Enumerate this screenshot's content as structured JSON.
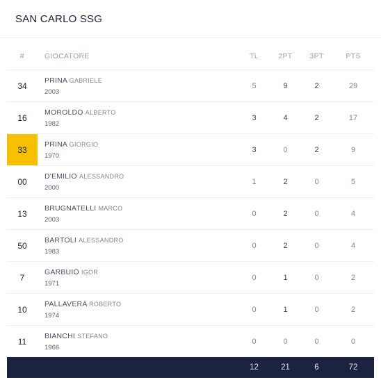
{
  "team": {
    "name": "SAN CARLO SSG"
  },
  "columns": {
    "num": "#",
    "player": "GIOCATORE",
    "tl": "TL",
    "p2": "2PT",
    "p3": "3PT",
    "pts": "PTS"
  },
  "players": [
    {
      "num": "34",
      "last": "PRINA",
      "first": "GABRIELE",
      "year": "2003",
      "tl": "5",
      "p2": "9",
      "p3": "2",
      "pts": "29",
      "highlight": false
    },
    {
      "num": "16",
      "last": "MOROLDO",
      "first": "ALBERTO",
      "year": "1982",
      "tl": "3",
      "p2": "4",
      "p3": "2",
      "pts": "17",
      "highlight": false
    },
    {
      "num": "33",
      "last": "PRINA",
      "first": "GIORGIO",
      "year": "1970",
      "tl": "3",
      "p2": "0",
      "p3": "2",
      "pts": "9",
      "highlight": true
    },
    {
      "num": "00",
      "last": "D'EMILIO",
      "first": "ALESSANDRO",
      "year": "2000",
      "tl": "1",
      "p2": "2",
      "p3": "0",
      "pts": "5",
      "highlight": false
    },
    {
      "num": "13",
      "last": "BRUGNATELLI",
      "first": "MARCO",
      "year": "2003",
      "tl": "0",
      "p2": "2",
      "p3": "0",
      "pts": "4",
      "highlight": false
    },
    {
      "num": "50",
      "last": "BARTOLI",
      "first": "ALESSANDRO",
      "year": "1983",
      "tl": "0",
      "p2": "2",
      "p3": "0",
      "pts": "4",
      "highlight": false
    },
    {
      "num": "7",
      "last": "GARBUIO",
      "first": "IGOR",
      "year": "1971",
      "tl": "0",
      "p2": "1",
      "p3": "0",
      "pts": "2",
      "highlight": false
    },
    {
      "num": "10",
      "last": "PALLAVERA",
      "first": "ROBERTO",
      "year": "1974",
      "tl": "0",
      "p2": "1",
      "p3": "0",
      "pts": "2",
      "highlight": false
    },
    {
      "num": "11",
      "last": "BIANCHI",
      "first": "STEFANO",
      "year": "1966",
      "tl": "0",
      "p2": "0",
      "p3": "0",
      "pts": "0",
      "highlight": false
    }
  ],
  "totals": {
    "tl": "12",
    "p2": "21",
    "p3": "6",
    "pts": "72"
  },
  "colors": {
    "highlight": "#f5c000",
    "footer": "#1c2340"
  }
}
